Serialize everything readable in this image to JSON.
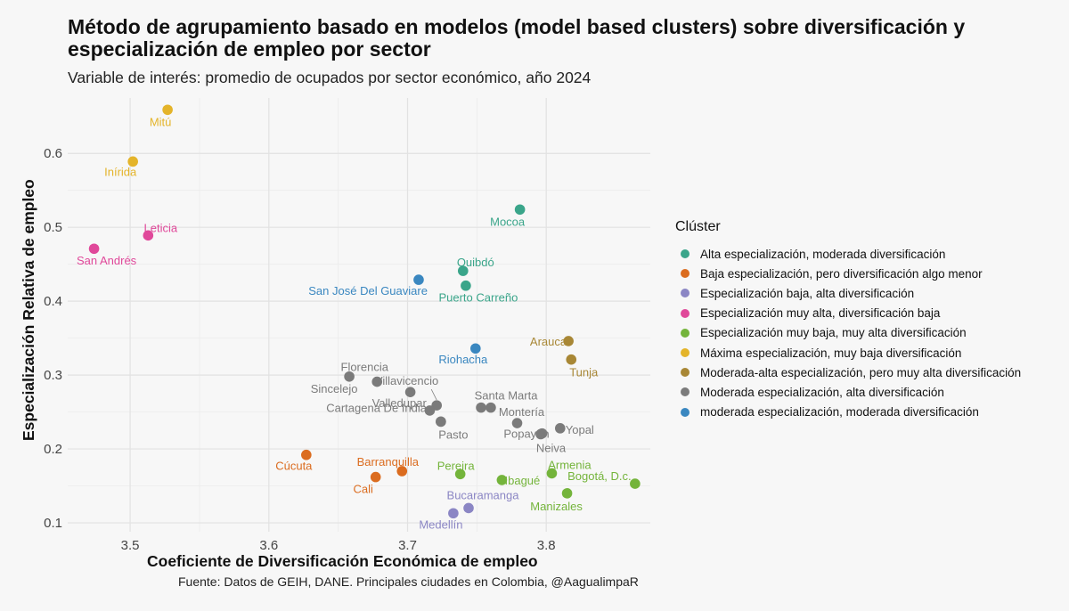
{
  "chart_data": {
    "type": "scatter",
    "title": "Método de agrupamiento basado en modelos (model based clusters) sobre diversificación y especialización de empleo por sector",
    "subtitle": "Variable de interés: promedio de ocupados por sector económico, año 2024",
    "xlabel": "Coeficiente de Diversificación Económica de empleo",
    "ylabel": "Especialización Relativa de empleo",
    "caption": "Fuente: Datos de GEIH, DANE. Principales ciudades en Colombia, @AagualimpaR",
    "xlim": [
      3.455,
      3.875
    ],
    "ylim": [
      0.088,
      0.675
    ],
    "xticks": [
      3.5,
      3.6,
      3.7,
      3.8
    ],
    "yticks": [
      0.1,
      0.2,
      0.3,
      0.4,
      0.5,
      0.6
    ],
    "grid": true,
    "legend_title": "Clúster",
    "legend_position": "right",
    "clusters": [
      {
        "name": "Alta especialización, moderada diversificación",
        "color": "#3aa58a"
      },
      {
        "name": "Baja especialización, pero diversificación algo menor",
        "color": "#db6c1f"
      },
      {
        "name": "Especialización baja, alta diversificación",
        "color": "#8b86c4"
      },
      {
        "name": "Especialización muy alta, diversificación baja",
        "color": "#e0489a"
      },
      {
        "name": "Especialización muy baja, muy alta diversificación",
        "color": "#74b43b"
      },
      {
        "name": "Máxima especialización, muy baja diversificación",
        "color": "#e4b42a"
      },
      {
        "name": "Moderada-alta especialización, pero muy alta diversificación",
        "color": "#a88735"
      },
      {
        "name": "Moderada especialización, alta diversificación",
        "color": "#7b7b7b"
      },
      {
        "name": "moderada especialización, moderada diversificación",
        "color": "#3a87c0"
      }
    ],
    "points": [
      {
        "label": "Mitú",
        "x": 3.527,
        "y": 0.659,
        "cluster": 5
      },
      {
        "label": "Inírida",
        "x": 3.502,
        "y": 0.589,
        "cluster": 5
      },
      {
        "label": "Leticia",
        "x": 3.513,
        "y": 0.489,
        "cluster": 3
      },
      {
        "label": "San Andrés",
        "x": 3.474,
        "y": 0.471,
        "cluster": 3
      },
      {
        "label": "Mocoa",
        "x": 3.781,
        "y": 0.524,
        "cluster": 0
      },
      {
        "label": "Quibdó",
        "x": 3.74,
        "y": 0.441,
        "cluster": 0
      },
      {
        "label": "Puerto Carreño",
        "x": 3.742,
        "y": 0.421,
        "cluster": 0
      },
      {
        "label": "San José Del Guaviare",
        "x": 3.708,
        "y": 0.429,
        "cluster": 8
      },
      {
        "label": "Riohacha",
        "x": 3.749,
        "y": 0.336,
        "cluster": 8
      },
      {
        "label": "Arauca",
        "x": 3.816,
        "y": 0.346,
        "cluster": 6
      },
      {
        "label": "Tunja",
        "x": 3.818,
        "y": 0.321,
        "cluster": 6
      },
      {
        "label": "Florencia",
        "x": 3.678,
        "y": 0.291,
        "cluster": 7
      },
      {
        "label": "Sincelejo",
        "x": 3.658,
        "y": 0.298,
        "cluster": 7
      },
      {
        "label": "Villavicencio",
        "x": 3.702,
        "y": 0.277,
        "cluster": 7
      },
      {
        "label": "Valledupar",
        "x": 3.721,
        "y": 0.259,
        "cluster": 7
      },
      {
        "label": "",
        "x": 3.716,
        "y": 0.252,
        "cluster": 7
      },
      {
        "label": "Cartagena De Indias",
        "x": 3.724,
        "y": 0.237,
        "cluster": 7
      },
      {
        "label": "Pasto",
        "x": 3.724,
        "y": 0.237,
        "cluster": 7
      },
      {
        "label": "Santa Marta",
        "x": 3.753,
        "y": 0.256,
        "cluster": 7
      },
      {
        "label": "",
        "x": 3.76,
        "y": 0.256,
        "cluster": 7
      },
      {
        "label": "Montería",
        "x": 3.779,
        "y": 0.235,
        "cluster": 7
      },
      {
        "label": "Popayán",
        "x": 3.796,
        "y": 0.22,
        "cluster": 7
      },
      {
        "label": "Yopal",
        "x": 3.81,
        "y": 0.228,
        "cluster": 7
      },
      {
        "label": "Neiva",
        "x": 3.797,
        "y": 0.221,
        "cluster": 7
      },
      {
        "label": "Cúcuta",
        "x": 3.627,
        "y": 0.192,
        "cluster": 1
      },
      {
        "label": "Barranquilla",
        "x": 3.696,
        "y": 0.17,
        "cluster": 1
      },
      {
        "label": "Cali",
        "x": 3.677,
        "y": 0.162,
        "cluster": 1
      },
      {
        "label": "Pereira",
        "x": 3.738,
        "y": 0.166,
        "cluster": 4
      },
      {
        "label": "Ibagué",
        "x": 3.768,
        "y": 0.158,
        "cluster": 4
      },
      {
        "label": "Armenia",
        "x": 3.804,
        "y": 0.167,
        "cluster": 4
      },
      {
        "label": "Bogotá, D.c.",
        "x": 3.864,
        "y": 0.153,
        "cluster": 4
      },
      {
        "label": "Manizales",
        "x": 3.815,
        "y": 0.14,
        "cluster": 4
      },
      {
        "label": "Bucaramanga",
        "x": 3.744,
        "y": 0.12,
        "cluster": 2
      },
      {
        "label": "Medellín",
        "x": 3.733,
        "y": 0.113,
        "cluster": 2
      }
    ]
  }
}
